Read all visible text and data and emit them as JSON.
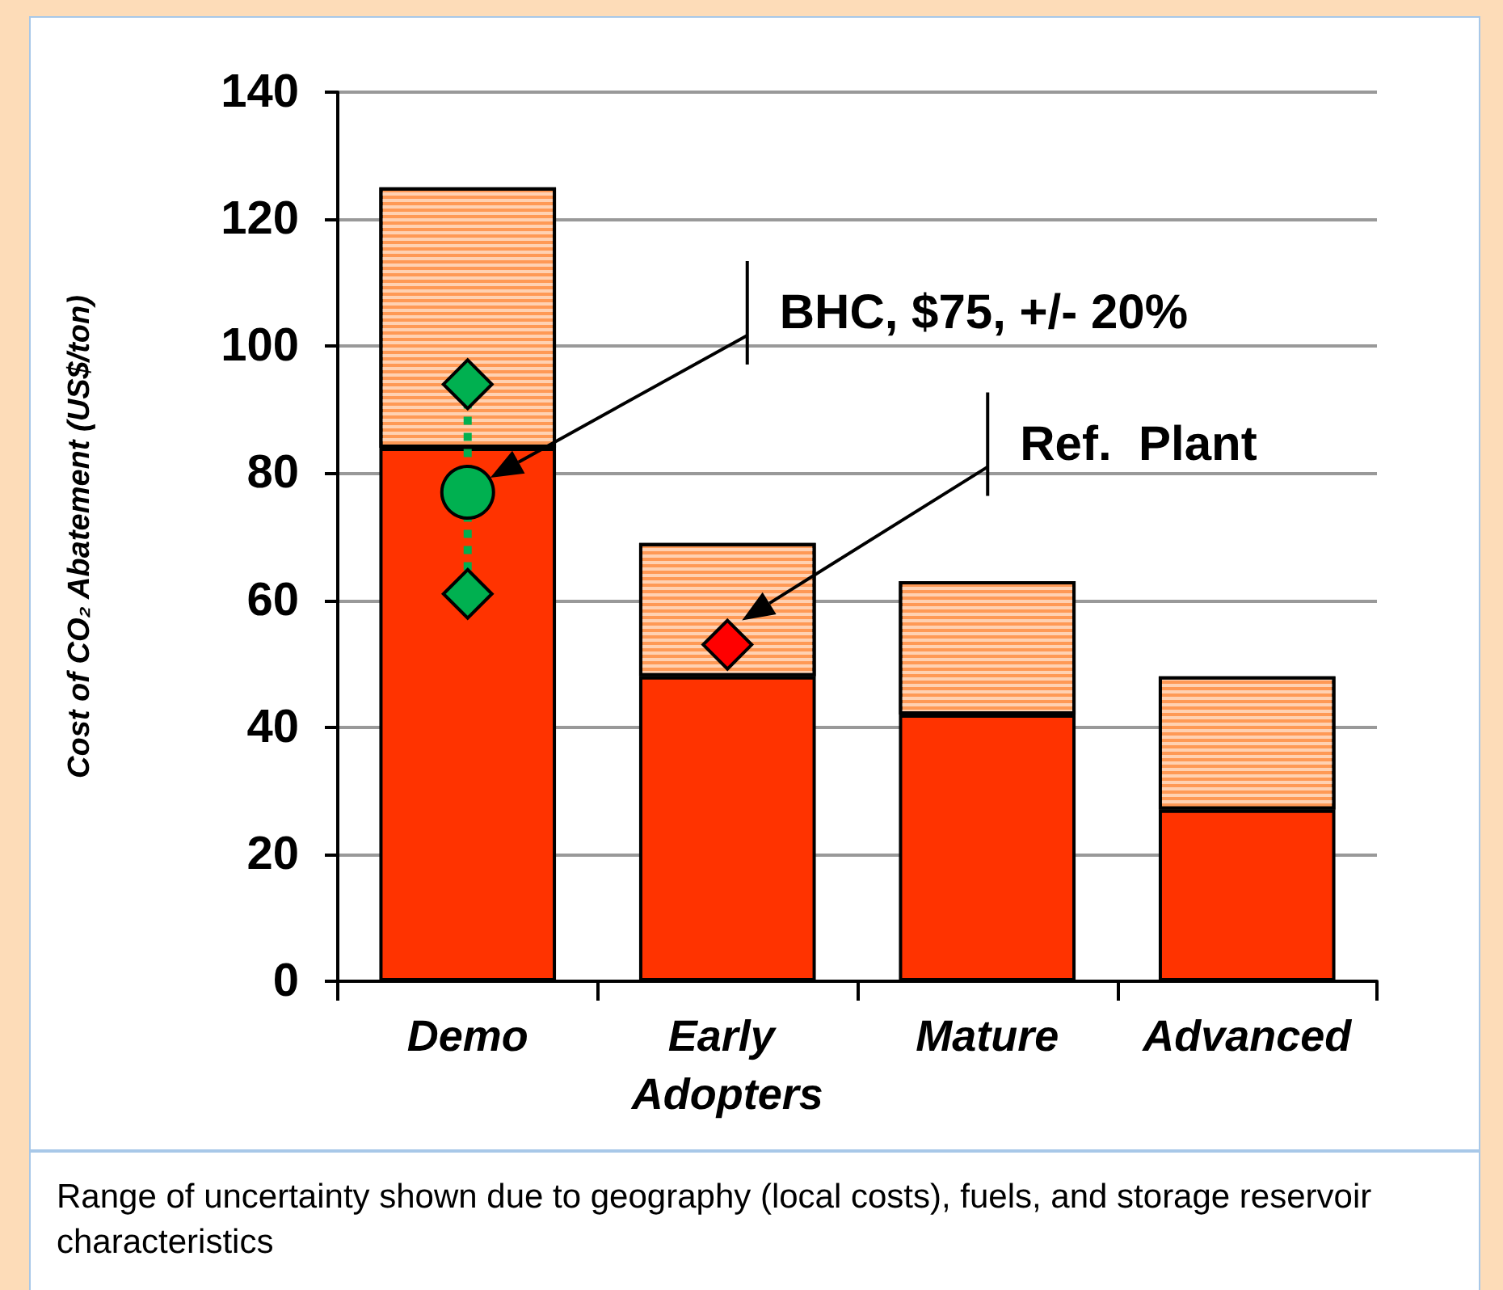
{
  "chart_data": {
    "type": "bar",
    "stacked": true,
    "categories": [
      "Demo",
      "Early Adopters",
      "Mature",
      "Advanced"
    ],
    "ylabel": "Cost of CO₂ Abatement (US$/ton)",
    "ylim": [
      0,
      140
    ],
    "yticks": [
      0,
      20,
      40,
      60,
      80,
      100,
      120,
      140
    ],
    "grid": "y",
    "series": [
      {
        "color": "#ff3300",
        "values": [
          84,
          48,
          42,
          27
        ]
      },
      {
        "color": "#ff9955",
        "values": [
          41,
          21,
          21,
          21
        ]
      },
      {
        "type": "line",
        "x": [
          "Demo",
          "Demo"
        ],
        "values": [
          94,
          61
        ],
        "color": "#00b050",
        "line_style": "dotted",
        "marker": "none"
      },
      {
        "type": "scatter",
        "x": [
          "Demo",
          "Demo"
        ],
        "values": [
          94,
          61
        ],
        "color": "#00b050",
        "marker": "diamond"
      },
      {
        "type": "scatter",
        "x": [
          "Demo"
        ],
        "values": [
          77
        ],
        "color": "#00b050",
        "marker": "circle"
      },
      {
        "type": "scatter",
        "x": [
          "Early Adopters"
        ],
        "values": [
          53
        ],
        "color": "#ff0000",
        "marker": "diamond"
      }
    ],
    "annotations": [
      "BHC, $75, +/- 20%",
      "Ref.  Plant",
      "Range of uncertainty shown due to geography (local costs), fuels, and storage reservoir characteristics"
    ]
  }
}
